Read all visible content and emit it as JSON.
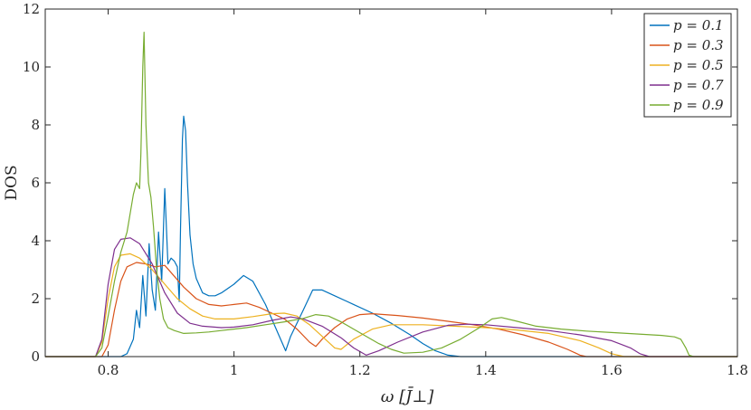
{
  "chart_data": {
    "type": "line",
    "xlabel": "ω [J̄⊥]",
    "ylabel": "DOS",
    "xlim": [
      0.7,
      1.8
    ],
    "ylim": [
      0,
      12
    ],
    "x_ticks": [
      "0.8",
      "1",
      "1.2",
      "1.4",
      "1.6",
      "1.8"
    ],
    "y_ticks": [
      "0",
      "2",
      "4",
      "6",
      "8",
      "10",
      "12"
    ],
    "grid": false,
    "legend_position": "top-right",
    "series": [
      {
        "name": "p = 0.1",
        "color": "#0072bd",
        "points": [
          [
            0.7,
            0
          ],
          [
            0.82,
            0
          ],
          [
            0.83,
            0.1
          ],
          [
            0.84,
            0.6
          ],
          [
            0.845,
            1.6
          ],
          [
            0.85,
            1.0
          ],
          [
            0.855,
            2.8
          ],
          [
            0.86,
            1.4
          ],
          [
            0.865,
            3.9
          ],
          [
            0.87,
            2.3
          ],
          [
            0.875,
            1.6
          ],
          [
            0.88,
            4.3
          ],
          [
            0.885,
            2.6
          ],
          [
            0.89,
            5.8
          ],
          [
            0.895,
            3.2
          ],
          [
            0.9,
            3.4
          ],
          [
            0.905,
            3.3
          ],
          [
            0.91,
            3.1
          ],
          [
            0.913,
            1.9
          ],
          [
            0.915,
            4.4
          ],
          [
            0.918,
            7.5
          ],
          [
            0.92,
            8.3
          ],
          [
            0.923,
            7.8
          ],
          [
            0.926,
            6.0
          ],
          [
            0.93,
            4.2
          ],
          [
            0.935,
            3.2
          ],
          [
            0.94,
            2.7
          ],
          [
            0.95,
            2.2
          ],
          [
            0.96,
            2.1
          ],
          [
            0.97,
            2.1
          ],
          [
            0.98,
            2.2
          ],
          [
            1.0,
            2.5
          ],
          [
            1.015,
            2.8
          ],
          [
            1.03,
            2.6
          ],
          [
            1.05,
            1.8
          ],
          [
            1.07,
            0.8
          ],
          [
            1.082,
            0.2
          ],
          [
            1.09,
            0.7
          ],
          [
            1.11,
            1.6
          ],
          [
            1.125,
            2.3
          ],
          [
            1.14,
            2.3
          ],
          [
            1.16,
            2.1
          ],
          [
            1.19,
            1.8
          ],
          [
            1.22,
            1.5
          ],
          [
            1.25,
            1.15
          ],
          [
            1.28,
            0.75
          ],
          [
            1.3,
            0.45
          ],
          [
            1.32,
            0.2
          ],
          [
            1.34,
            0.05
          ],
          [
            1.36,
            0
          ],
          [
            1.8,
            0
          ]
        ]
      },
      {
        "name": "p = 0.3",
        "color": "#d95319",
        "points": [
          [
            0.7,
            0
          ],
          [
            0.79,
            0
          ],
          [
            0.8,
            0.4
          ],
          [
            0.81,
            1.6
          ],
          [
            0.82,
            2.6
          ],
          [
            0.83,
            3.1
          ],
          [
            0.845,
            3.25
          ],
          [
            0.86,
            3.2
          ],
          [
            0.875,
            3.1
          ],
          [
            0.89,
            3.15
          ],
          [
            0.9,
            2.9
          ],
          [
            0.92,
            2.4
          ],
          [
            0.94,
            2.0
          ],
          [
            0.96,
            1.8
          ],
          [
            0.98,
            1.75
          ],
          [
            1.0,
            1.8
          ],
          [
            1.02,
            1.85
          ],
          [
            1.04,
            1.7
          ],
          [
            1.06,
            1.5
          ],
          [
            1.08,
            1.3
          ],
          [
            1.1,
            0.95
          ],
          [
            1.12,
            0.5
          ],
          [
            1.13,
            0.35
          ],
          [
            1.14,
            0.6
          ],
          [
            1.16,
            1.0
          ],
          [
            1.18,
            1.3
          ],
          [
            1.2,
            1.45
          ],
          [
            1.22,
            1.48
          ],
          [
            1.26,
            1.42
          ],
          [
            1.3,
            1.33
          ],
          [
            1.34,
            1.22
          ],
          [
            1.38,
            1.1
          ],
          [
            1.42,
            0.95
          ],
          [
            1.46,
            0.75
          ],
          [
            1.5,
            0.5
          ],
          [
            1.53,
            0.25
          ],
          [
            1.55,
            0.05
          ],
          [
            1.56,
            0
          ],
          [
            1.8,
            0
          ]
        ]
      },
      {
        "name": "p = 0.5",
        "color": "#edb120",
        "points": [
          [
            0.7,
            0
          ],
          [
            0.78,
            0
          ],
          [
            0.79,
            0.5
          ],
          [
            0.8,
            2.0
          ],
          [
            0.81,
            3.1
          ],
          [
            0.82,
            3.5
          ],
          [
            0.835,
            3.55
          ],
          [
            0.85,
            3.4
          ],
          [
            0.87,
            3.0
          ],
          [
            0.89,
            2.5
          ],
          [
            0.91,
            2.0
          ],
          [
            0.93,
            1.65
          ],
          [
            0.95,
            1.4
          ],
          [
            0.97,
            1.3
          ],
          [
            1.0,
            1.3
          ],
          [
            1.03,
            1.38
          ],
          [
            1.06,
            1.48
          ],
          [
            1.08,
            1.5
          ],
          [
            1.1,
            1.4
          ],
          [
            1.12,
            1.1
          ],
          [
            1.14,
            0.7
          ],
          [
            1.16,
            0.3
          ],
          [
            1.17,
            0.25
          ],
          [
            1.19,
            0.6
          ],
          [
            1.22,
            0.95
          ],
          [
            1.25,
            1.1
          ],
          [
            1.3,
            1.1
          ],
          [
            1.35,
            1.05
          ],
          [
            1.4,
            1.0
          ],
          [
            1.45,
            0.92
          ],
          [
            1.5,
            0.8
          ],
          [
            1.55,
            0.55
          ],
          [
            1.58,
            0.3
          ],
          [
            1.6,
            0.1
          ],
          [
            1.62,
            0
          ],
          [
            1.8,
            0
          ]
        ]
      },
      {
        "name": "p = 0.7",
        "color": "#7e2f8e",
        "points": [
          [
            0.7,
            0
          ],
          [
            0.78,
            0
          ],
          [
            0.79,
            0.6
          ],
          [
            0.8,
            2.5
          ],
          [
            0.81,
            3.7
          ],
          [
            0.82,
            4.05
          ],
          [
            0.835,
            4.1
          ],
          [
            0.85,
            3.9
          ],
          [
            0.87,
            3.2
          ],
          [
            0.89,
            2.2
          ],
          [
            0.91,
            1.5
          ],
          [
            0.93,
            1.15
          ],
          [
            0.95,
            1.05
          ],
          [
            0.98,
            1.0
          ],
          [
            1.0,
            1.02
          ],
          [
            1.03,
            1.1
          ],
          [
            1.06,
            1.25
          ],
          [
            1.09,
            1.37
          ],
          [
            1.11,
            1.3
          ],
          [
            1.14,
            1.05
          ],
          [
            1.17,
            0.65
          ],
          [
            1.19,
            0.3
          ],
          [
            1.21,
            0.05
          ],
          [
            1.23,
            0.2
          ],
          [
            1.26,
            0.5
          ],
          [
            1.3,
            0.85
          ],
          [
            1.34,
            1.08
          ],
          [
            1.37,
            1.12
          ],
          [
            1.4,
            1.1
          ],
          [
            1.45,
            1.0
          ],
          [
            1.5,
            0.9
          ],
          [
            1.55,
            0.75
          ],
          [
            1.6,
            0.55
          ],
          [
            1.63,
            0.3
          ],
          [
            1.645,
            0.1
          ],
          [
            1.66,
            0
          ],
          [
            1.8,
            0
          ]
        ]
      },
      {
        "name": "p = 0.9",
        "color": "#77ac30",
        "points": [
          [
            0.7,
            0
          ],
          [
            0.78,
            0
          ],
          [
            0.79,
            0.3
          ],
          [
            0.8,
            1.4
          ],
          [
            0.81,
            2.6
          ],
          [
            0.82,
            3.6
          ],
          [
            0.83,
            4.3
          ],
          [
            0.84,
            5.6
          ],
          [
            0.845,
            6.0
          ],
          [
            0.85,
            5.8
          ],
          [
            0.852,
            7.0
          ],
          [
            0.855,
            10.0
          ],
          [
            0.857,
            11.2
          ],
          [
            0.86,
            8.0
          ],
          [
            0.864,
            6.0
          ],
          [
            0.868,
            5.5
          ],
          [
            0.872,
            4.5
          ],
          [
            0.877,
            3.0
          ],
          [
            0.882,
            2.0
          ],
          [
            0.888,
            1.3
          ],
          [
            0.895,
            1.0
          ],
          [
            0.905,
            0.9
          ],
          [
            0.92,
            0.8
          ],
          [
            0.94,
            0.82
          ],
          [
            0.96,
            0.85
          ],
          [
            0.98,
            0.9
          ],
          [
            1.0,
            0.95
          ],
          [
            1.02,
            1.0
          ],
          [
            1.05,
            1.1
          ],
          [
            1.08,
            1.2
          ],
          [
            1.11,
            1.32
          ],
          [
            1.13,
            1.45
          ],
          [
            1.15,
            1.4
          ],
          [
            1.17,
            1.2
          ],
          [
            1.19,
            0.95
          ],
          [
            1.21,
            0.7
          ],
          [
            1.23,
            0.45
          ],
          [
            1.25,
            0.25
          ],
          [
            1.27,
            0.12
          ],
          [
            1.3,
            0.15
          ],
          [
            1.33,
            0.3
          ],
          [
            1.36,
            0.6
          ],
          [
            1.39,
            1.0
          ],
          [
            1.41,
            1.3
          ],
          [
            1.425,
            1.35
          ],
          [
            1.45,
            1.22
          ],
          [
            1.48,
            1.05
          ],
          [
            1.52,
            0.95
          ],
          [
            1.56,
            0.88
          ],
          [
            1.6,
            0.83
          ],
          [
            1.64,
            0.78
          ],
          [
            1.68,
            0.73
          ],
          [
            1.7,
            0.68
          ],
          [
            1.71,
            0.6
          ],
          [
            1.718,
            0.3
          ],
          [
            1.723,
            0.05
          ],
          [
            1.73,
            0
          ],
          [
            1.8,
            0
          ]
        ]
      }
    ]
  }
}
